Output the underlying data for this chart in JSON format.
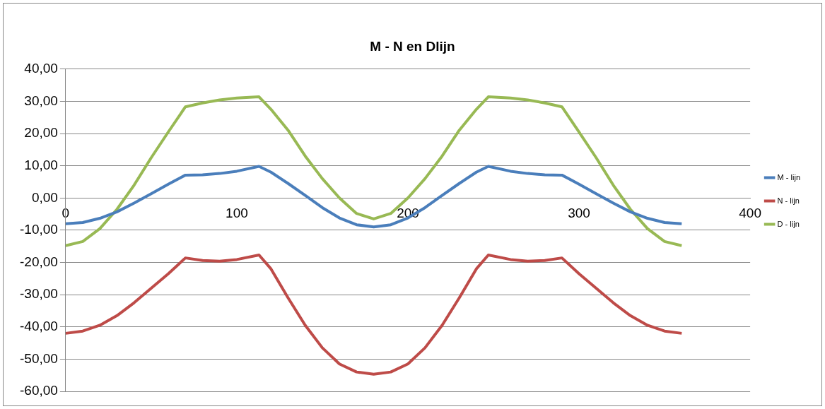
{
  "chart_data": {
    "type": "line",
    "title": "M - N en Dlijn",
    "x": [
      0,
      10,
      20,
      30,
      40,
      50,
      60,
      70,
      80,
      90,
      100,
      113,
      120,
      130,
      140,
      150,
      160,
      170,
      180,
      190,
      200,
      210,
      220,
      230,
      240,
      247,
      260,
      270,
      280,
      290,
      300,
      310,
      320,
      330,
      340,
      350,
      360
    ],
    "series": [
      {
        "name": "M - lijn",
        "color": "#4a7ebb",
        "values": [
          -8,
          -7.6,
          -6.3,
          -4.3,
          -1.6,
          1.3,
          4.3,
          7.1,
          7.2,
          7.6,
          8.3,
          9.8,
          8,
          4.5,
          0.8,
          -3,
          -6.2,
          -8.3,
          -9,
          -8.3,
          -6.2,
          -3,
          0.8,
          4.5,
          8,
          9.8,
          8.3,
          7.6,
          7.2,
          7.1,
          4.3,
          1.3,
          -1.6,
          -4.3,
          -6.3,
          -7.6,
          -8
        ]
      },
      {
        "name": "N - lijn",
        "color": "#be4b48",
        "values": [
          -42,
          -41.3,
          -39.5,
          -36.5,
          -32.5,
          -28,
          -23.5,
          -18.6,
          -19.4,
          -19.6,
          -19.1,
          -17.7,
          -22,
          -31,
          -39.5,
          -46.5,
          -51.5,
          -54,
          -54.7,
          -54,
          -51.5,
          -46.5,
          -39.5,
          -31,
          -22,
          -17.7,
          -19.1,
          -19.6,
          -19.4,
          -18.6,
          -23.5,
          -28,
          -32.5,
          -36.5,
          -39.5,
          -41.3,
          -42
        ]
      },
      {
        "name": "D - lijn",
        "color": "#98b954",
        "values": [
          -14.8,
          -13.5,
          -9.5,
          -3.5,
          4,
          12.5,
          20.5,
          28.3,
          29.5,
          30.4,
          31,
          31.4,
          27.5,
          21,
          13,
          6,
          0,
          -4.8,
          -6.5,
          -4.8,
          0,
          6,
          13,
          21,
          27.5,
          31.4,
          31,
          30.4,
          29.5,
          28.3,
          20.5,
          12.5,
          4,
          -3.5,
          -9.5,
          -13.5,
          -14.8
        ]
      }
    ],
    "xlim": [
      0,
      400
    ],
    "xticks": [
      0,
      100,
      200,
      300,
      400
    ],
    "ylim": [
      -60,
      40
    ],
    "yticks": [
      {
        "value": -60,
        "label": "-60,00"
      },
      {
        "value": -50,
        "label": "-50,00"
      },
      {
        "value": -40,
        "label": "-40,00"
      },
      {
        "value": -30,
        "label": "-30,00"
      },
      {
        "value": -20,
        "label": "-20,00"
      },
      {
        "value": -10,
        "label": "-10,00"
      },
      {
        "value": 0,
        "label": "0,00"
      },
      {
        "value": 10,
        "label": "10,00"
      },
      {
        "value": 20,
        "label": "20,00"
      },
      {
        "value": 30,
        "label": "30,00"
      },
      {
        "value": 40,
        "label": "40,00"
      }
    ],
    "grid": "y",
    "legend": "right",
    "marker": "none",
    "line_style": "solid"
  }
}
